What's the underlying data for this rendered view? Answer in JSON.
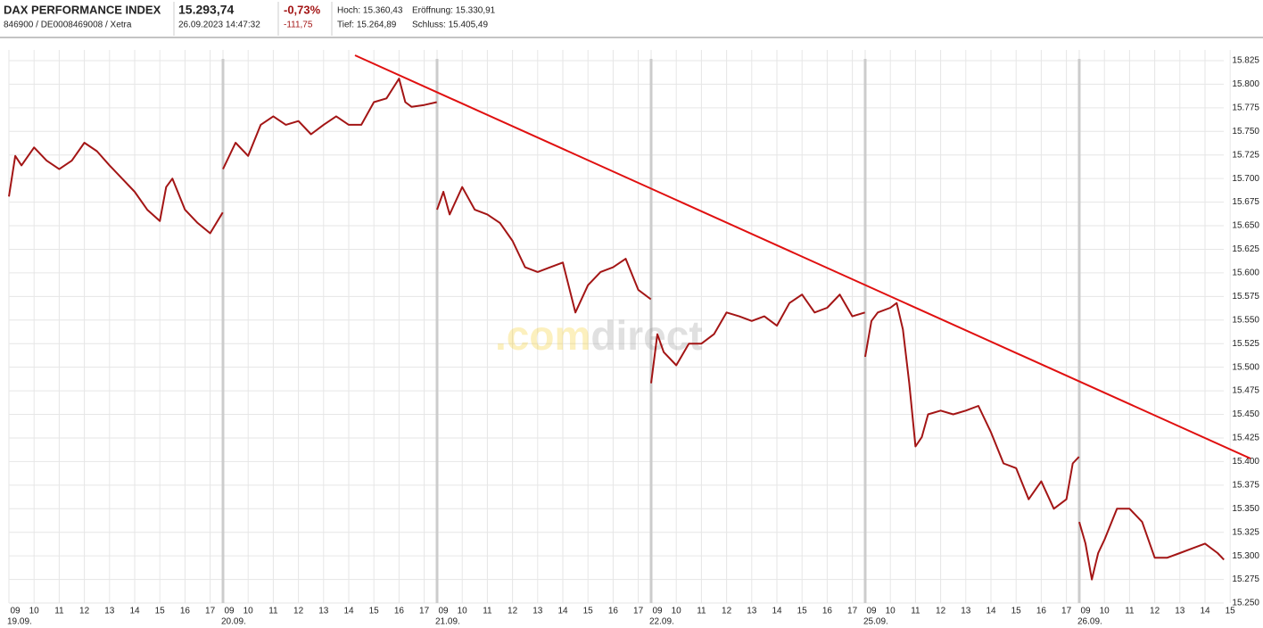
{
  "header": {
    "name": "DAX PERFORMANCE INDEX",
    "ids": "846900 / DE0008469008 / Xetra",
    "price": "15.293,74",
    "timestamp": "26.09.2023 14:47:32",
    "change_pct": "-0,73%",
    "change_abs": "-111,75",
    "high": "Hoch: 15.360,43",
    "open": "Eröffnung: 15.330,91",
    "low": "Tief: 15.264,89",
    "close": "Schluss: 15.405,49"
  },
  "watermark": {
    "part1": ".com",
    "part2": "direct"
  },
  "chart_data": {
    "type": "line",
    "color": "#a31515",
    "grid": true,
    "ylim": [
      15250,
      15825
    ],
    "yticks": [
      {
        "value": 15250,
        "label": "15.250"
      },
      {
        "value": 15275,
        "label": "15.275"
      },
      {
        "value": 15300,
        "label": "15.300"
      },
      {
        "value": 15325,
        "label": "15.325"
      },
      {
        "value": 15350,
        "label": "15.350"
      },
      {
        "value": 15375,
        "label": "15.375"
      },
      {
        "value": 15400,
        "label": "15.400"
      },
      {
        "value": 15425,
        "label": "15.425"
      },
      {
        "value": 15450,
        "label": "15.450"
      },
      {
        "value": 15475,
        "label": "15.475"
      },
      {
        "value": 15500,
        "label": "15.500"
      },
      {
        "value": 15525,
        "label": "15.525"
      },
      {
        "value": 15550,
        "label": "15.550"
      },
      {
        "value": 15575,
        "label": "15.575"
      },
      {
        "value": 15600,
        "label": "15.600"
      },
      {
        "value": 15625,
        "label": "15.625"
      },
      {
        "value": 15650,
        "label": "15.650"
      },
      {
        "value": 15675,
        "label": "15.675"
      },
      {
        "value": 15700,
        "label": "15.700"
      },
      {
        "value": 15725,
        "label": "15.725"
      },
      {
        "value": 15750,
        "label": "15.750"
      },
      {
        "value": 15775,
        "label": "15.775"
      },
      {
        "value": 15800,
        "label": "15.800"
      },
      {
        "value": 15825,
        "label": "15.825"
      }
    ],
    "days": [
      {
        "label": "19.09.",
        "hour_ticks": [
          {
            "value": 9,
            "label": "09"
          },
          10,
          11,
          12,
          13,
          14,
          15,
          16,
          17
        ],
        "x": [
          9,
          9.25,
          9.5,
          10,
          10.5,
          11,
          11.5,
          12,
          12.5,
          13,
          13.5,
          14,
          14.5,
          15,
          15.25,
          15.5,
          16,
          16.5,
          17,
          17.5
        ],
        "values": [
          15681,
          15724,
          15714,
          15733,
          15719,
          15710,
          15719,
          15738,
          15729,
          15714,
          15700,
          15686,
          15667,
          15655,
          15691,
          15700,
          15667,
          15653,
          15642,
          15664
        ]
      },
      {
        "label": "20.09.",
        "hour_ticks": [
          {
            "value": 9,
            "label": "09"
          },
          10,
          11,
          12,
          13,
          14,
          15,
          16,
          17
        ],
        "x": [
          9,
          9.5,
          10,
          10.5,
          11,
          11.5,
          12,
          12.5,
          13,
          13.5,
          14,
          14.5,
          15,
          15.5,
          16,
          16.25,
          16.5,
          17,
          17.5
        ],
        "values": [
          15710,
          15738,
          15724,
          15757,
          15766,
          15757,
          15761,
          15747,
          15757,
          15766,
          15757,
          15757,
          15781,
          15785,
          15806,
          15781,
          15776,
          15778,
          15781
        ]
      },
      {
        "label": "21.09.",
        "hour_ticks": [
          {
            "value": 9,
            "label": "09"
          },
          10,
          11,
          12,
          13,
          14,
          15,
          16,
          17
        ],
        "x": [
          9,
          9.25,
          9.5,
          10,
          10.5,
          11,
          11.5,
          12,
          12.5,
          13,
          13.5,
          14,
          14.5,
          15,
          15.5,
          16,
          16.5,
          17,
          17.5
        ],
        "values": [
          15667,
          15686,
          15662,
          15691,
          15667,
          15662,
          15653,
          15634,
          15606,
          15601,
          15606,
          15611,
          15558,
          15587,
          15601,
          15606,
          15615,
          15582,
          15572
        ]
      },
      {
        "label": "22.09.",
        "hour_ticks": [
          {
            "value": 9,
            "label": "09"
          },
          10,
          11,
          12,
          13,
          14,
          15,
          16,
          17
        ],
        "x": [
          9,
          9.25,
          9.5,
          10,
          10.5,
          11,
          11.5,
          12,
          12.5,
          13,
          13.5,
          14,
          14.5,
          15,
          15.5,
          16,
          16.5,
          17,
          17.5
        ],
        "values": [
          15483,
          15535,
          15516,
          15502,
          15525,
          15525,
          15535,
          15558,
          15554,
          15549,
          15554,
          15544,
          15568,
          15577,
          15558,
          15563,
          15577,
          15554,
          15558
        ]
      },
      {
        "label": "25.09.",
        "hour_ticks": [
          {
            "value": 9,
            "label": "09"
          },
          10,
          11,
          12,
          13,
          14,
          15,
          16,
          17
        ],
        "x": [
          9,
          9.25,
          9.5,
          10,
          10.25,
          10.5,
          10.75,
          11,
          11.25,
          11.5,
          12,
          12.5,
          13,
          13.5,
          14,
          14.5,
          15,
          15.5,
          16,
          16.5,
          17,
          17.25,
          17.5
        ],
        "values": [
          15511,
          15549,
          15558,
          15563,
          15568,
          15540,
          15483,
          15416,
          15426,
          15450,
          15454,
          15450,
          15454,
          15459,
          15431,
          15398,
          15393,
          15360,
          15379,
          15350,
          15360,
          15398,
          15405
        ]
      },
      {
        "label": "26.09.",
        "hour_ticks": [
          {
            "value": 9,
            "label": "09"
          },
          10,
          11,
          12,
          13,
          14,
          15
        ],
        "x": [
          9,
          9.25,
          9.5,
          9.75,
          10,
          10.5,
          11,
          11.5,
          12,
          12.5,
          13,
          13.5,
          14,
          14.5,
          14.75
        ],
        "values": [
          15336,
          15313,
          15275,
          15303,
          15317,
          15350,
          15350,
          15336,
          15298,
          15298,
          15303,
          15308,
          15313,
          15303,
          15296
        ]
      }
    ]
  }
}
